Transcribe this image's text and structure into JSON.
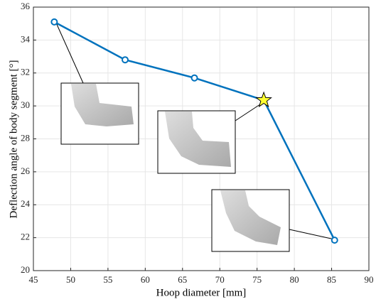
{
  "chart_data": {
    "type": "line",
    "xlabel": "Hoop diameter [mm]",
    "ylabel": "Deflection angle of body segment [°]",
    "x": [
      47.8,
      57.3,
      66.6,
      75.9,
      85.4
    ],
    "series": [
      {
        "color": "#0072bd",
        "values": [
          35.1,
          32.8,
          31.7,
          30.35,
          21.85
        ]
      }
    ],
    "star_point": 3,
    "star_color": "#ffff33",
    "xlim": [
      45,
      90
    ],
    "xticks": [
      45,
      50,
      55,
      60,
      65,
      70,
      75,
      80,
      85,
      90
    ],
    "ylim": [
      20,
      36
    ],
    "yticks": [
      20,
      22,
      24,
      26,
      28,
      30,
      32,
      34,
      36
    ],
    "grid": true
  }
}
